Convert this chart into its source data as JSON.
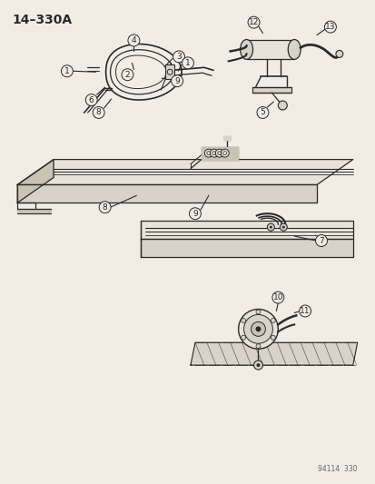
{
  "title": "14–330A",
  "footer": "94114  330",
  "bg_color": "#f2ede4",
  "line_color": "#2a2a2a",
  "fill_light": "#e8e3d8",
  "fill_mid": "#d8d3c8",
  "fill_dark": "#c8c3b5",
  "figsize": [
    4.14,
    5.33
  ],
  "dpi": 100
}
